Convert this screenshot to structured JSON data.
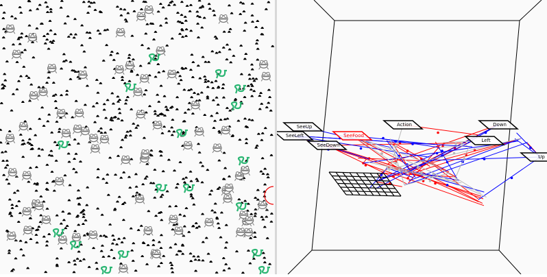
{
  "world_view": {
    "background": "#fafafa",
    "food_color": "#000000",
    "agent_color": "#7a7a7a",
    "predator_color": "#2bb673",
    "sprites": [
      "food-dot-icon",
      "frog-agent-icon",
      "snake-predator-icon"
    ]
  },
  "network_view": {
    "colors": {
      "excitatory": "#ff0000",
      "inhibitory": "#0000ff",
      "neutral": "#b8b8b8",
      "frame": "#000000"
    },
    "input_nodes": [
      {
        "label": "SeeUp",
        "active": false
      },
      {
        "label": "SeeLeft",
        "active": false
      },
      {
        "label": "SeeFood",
        "active": true
      },
      {
        "label": "SeeDown",
        "active": false
      }
    ],
    "output_nodes": [
      {
        "label": "Action",
        "active": false
      },
      {
        "label": "Down",
        "active": false
      },
      {
        "label": "Left",
        "active": false
      },
      {
        "label": "Up",
        "active": false
      }
    ]
  }
}
